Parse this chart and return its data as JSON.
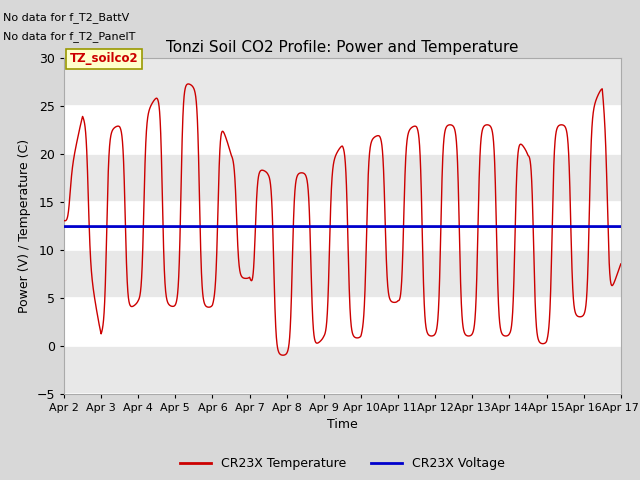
{
  "title": "Tonzi Soil CO2 Profile: Power and Temperature",
  "xlabel": "Time",
  "ylabel": "Power (V) / Temperature (C)",
  "ylim": [
    -5,
    30
  ],
  "yticks": [
    -5,
    0,
    5,
    10,
    15,
    20,
    25,
    30
  ],
  "xlim": [
    2,
    17
  ],
  "x_tick_labels": [
    "Apr 2",
    "Apr 3",
    "Apr 4",
    "Apr 5",
    "Apr 6",
    "Apr 7",
    "Apr 8",
    "Apr 9",
    "Apr 10",
    "Apr 11",
    "Apr 12",
    "Apr 13",
    "Apr 14",
    "Apr 15",
    "Apr 16",
    "Apr 17"
  ],
  "no_data_text1": "No data for f_T2_BattV",
  "no_data_text2": "No data for f_T2_PanelT",
  "legend_label_red": "CR23X Temperature",
  "legend_label_blue": "CR23X Voltage",
  "box_label": "TZ_soilco2",
  "blue_voltage": 12.4,
  "bg_color": "#d8d8d8",
  "plot_bg_white": "#ffffff",
  "plot_bg_gray": "#e8e8e8",
  "red_color": "#cc0000",
  "blue_color": "#0000cc",
  "grid_color": "#ffffff"
}
